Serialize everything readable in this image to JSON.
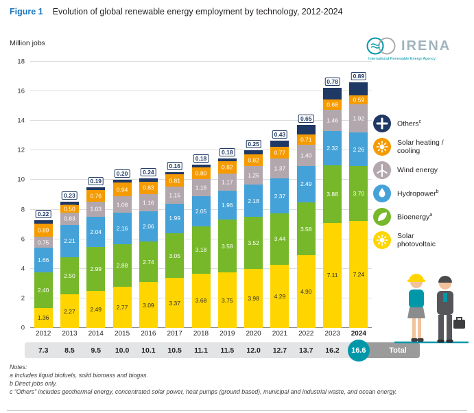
{
  "figure": {
    "label": "Figure 1",
    "title": "Evolution of global renewable energy employment by technology, 2012-2024"
  },
  "y_axis": {
    "label": "Million jobs",
    "ticks": [
      0,
      2,
      4,
      6,
      8,
      10,
      12,
      14,
      16,
      18
    ]
  },
  "logo": {
    "wordmark": "IRENA",
    "subtitle": "International Renewable Energy Agency"
  },
  "chart_data": {
    "type": "bar",
    "stacked": true,
    "title": "Evolution of global renewable energy employment by technology, 2012-2024",
    "ylabel": "Million jobs",
    "ylim": [
      0,
      18
    ],
    "grid": true,
    "legend_position": "right",
    "categories": [
      "2012",
      "2013",
      "2014",
      "2015",
      "2016",
      "2017",
      "2018",
      "2019",
      "2020",
      "2021",
      "2022",
      "2023",
      "2024"
    ],
    "series": [
      {
        "name": "Solar photovoltaic",
        "color": "#FFD500",
        "values": [
          1.36,
          2.27,
          2.49,
          2.77,
          3.09,
          3.37,
          3.68,
          3.75,
          3.98,
          4.29,
          4.9,
          7.11,
          7.24
        ]
      },
      {
        "name": "Bioenergy",
        "color": "#76B82A",
        "values": [
          2.4,
          2.5,
          2.99,
          2.88,
          2.74,
          3.05,
          3.18,
          3.58,
          3.52,
          3.44,
          3.58,
          3.88,
          3.7
        ]
      },
      {
        "name": "Hydropower",
        "color": "#45A2D9",
        "values": [
          1.66,
          2.21,
          2.04,
          2.16,
          2.06,
          1.99,
          2.05,
          1.96,
          2.18,
          2.37,
          2.49,
          2.32,
          2.26
        ]
      },
      {
        "name": "Wind energy",
        "color": "#B3A7AE",
        "values": [
          0.75,
          0.83,
          1.03,
          1.08,
          1.16,
          1.15,
          1.16,
          1.17,
          1.25,
          1.37,
          1.4,
          1.46,
          1.92
        ]
      },
      {
        "name": "Solar heating / cooling",
        "color": "#F59B00",
        "values": [
          0.89,
          0.5,
          0.76,
          0.94,
          0.83,
          0.81,
          0.8,
          0.82,
          0.82,
          0.77,
          0.71,
          0.68,
          0.59
        ]
      },
      {
        "name": "Others",
        "color": "#1F3864",
        "values": [
          0.22,
          0.23,
          0.19,
          0.2,
          0.24,
          0.16,
          0.18,
          0.18,
          0.25,
          0.43,
          0.65,
          0.78,
          0.89
        ]
      }
    ],
    "totals": [
      "7.3",
      "8.5",
      "9.5",
      "10.0",
      "10.1",
      "10.5",
      "11.1",
      "11.5",
      "12.0",
      "12.7",
      "13.7",
      "16.2",
      "16.6"
    ]
  },
  "legend": {
    "items": [
      {
        "lines": [
          "Others"
        ],
        "sup": "c",
        "color": "#1F3864",
        "icon": "plus-icon"
      },
      {
        "lines": [
          "Solar heating /",
          "cooling"
        ],
        "sup": "",
        "color": "#F59B00",
        "icon": "sun-icon"
      },
      {
        "lines": [
          "Wind energy"
        ],
        "sup": "",
        "color": "#B3A7AE",
        "icon": "wind-turbine-icon"
      },
      {
        "lines": [
          "Hydropower"
        ],
        "sup": "b",
        "color": "#45A2D9",
        "icon": "water-drop-icon"
      },
      {
        "lines": [
          "Bioenergy"
        ],
        "sup": "a",
        "color": "#76B82A",
        "icon": "leaf-icon"
      },
      {
        "lines": [
          "Solar",
          "photovoltaic"
        ],
        "sup": "",
        "color": "#FFD500",
        "icon": "sun-icon"
      }
    ]
  },
  "totals_band": {
    "label": "Total"
  },
  "notes": {
    "heading": "Notes:",
    "lines": [
      "a Includes liquid biofuels, solid biomass and biogas.",
      "b Direct jobs only.",
      "c “Others” includes geothermal energy, concentrated solar power, heat pumps (ground based), municipal and industrial waste, and ocean energy."
    ]
  }
}
